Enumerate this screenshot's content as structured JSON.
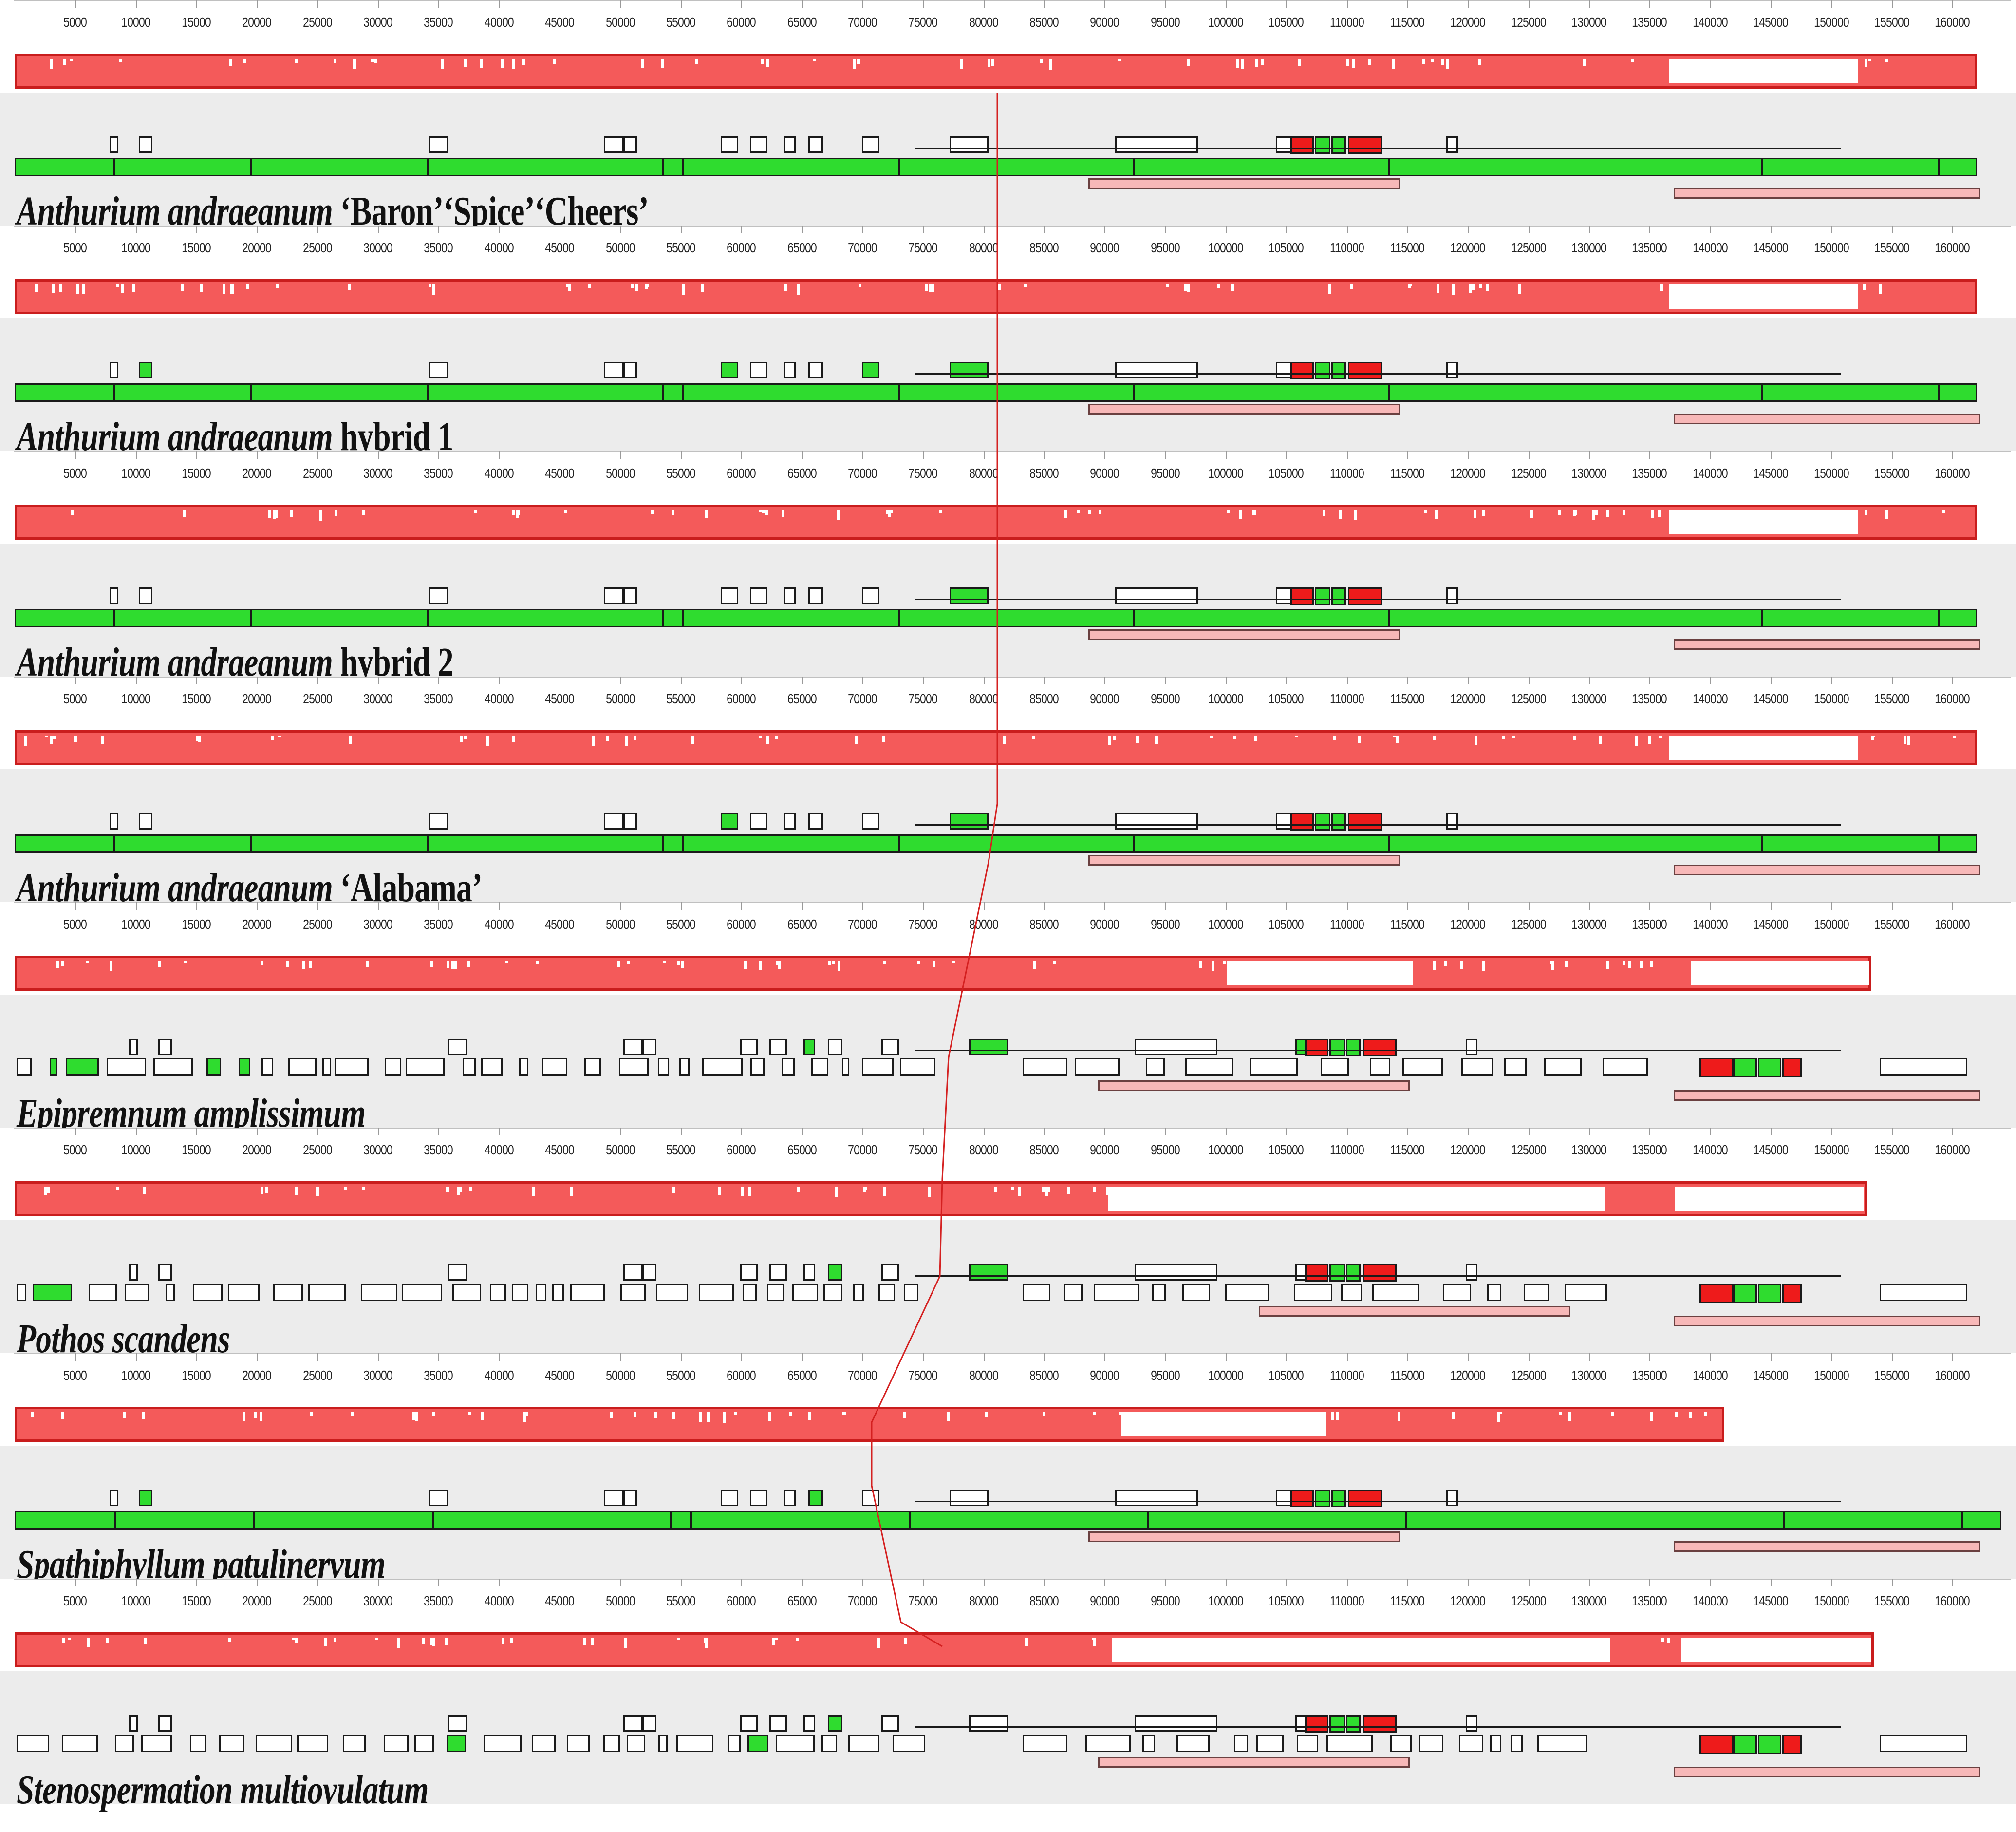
{
  "ruler": {
    "ticks": [
      "5000",
      "10000",
      "15000",
      "20000",
      "25000",
      "30000",
      "35000",
      "40000",
      "45000",
      "50000",
      "55000",
      "60000",
      "65000",
      "70000",
      "75000",
      "80000",
      "85000",
      "90000",
      "95000",
      "100000",
      "105000",
      "110000",
      "115000",
      "120000",
      "125000",
      "130000",
      "135000",
      "140000",
      "145000",
      "150000",
      "155000",
      "160000"
    ]
  },
  "genomes": [
    {
      "label_italic": "Anthurium andraeanum",
      "label_rest": " ‘Baron’‘Spice’‘Cheers’",
      "type": "anthurium"
    },
    {
      "label_italic": "Anthurium andraeanum",
      "label_rest": " hybrid 1",
      "type": "anthurium"
    },
    {
      "label_italic": "Anthurium andraeanum",
      "label_rest": " hybrid 2",
      "type": "anthurium"
    },
    {
      "label_italic": "Anthurium andraeanum",
      "label_rest": " ‘Alabama’",
      "type": "anthurium"
    },
    {
      "label_italic": "Epipremnum amplissimum",
      "label_rest": "",
      "type": "fragmented"
    },
    {
      "label_italic": "Pothos scandens",
      "label_rest": "",
      "type": "fragmented"
    },
    {
      "label_italic": "Spathiphyllum patulinervum",
      "label_rest": "",
      "type": "spathiphyllum"
    },
    {
      "label_italic": "Stenospermation multiovulatum",
      "label_rest": "",
      "type": "fragmented"
    }
  ],
  "colors": {
    "identity_fill": "#f45a5a",
    "identity_border": "#c91d1d",
    "gene_green": "#2fdc2f",
    "gene_red": "#ee1b1b",
    "repeat_pink": "#f7b8b8",
    "connector": "#d42020"
  }
}
